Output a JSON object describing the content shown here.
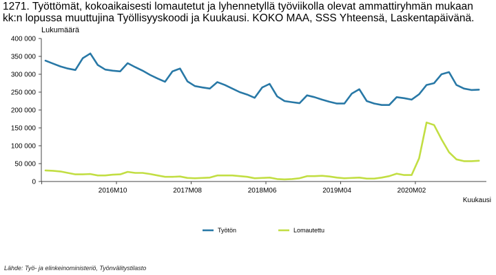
{
  "title": "1271. Työttömät, kokoaikaisesti lomautetut ja lyhennetyllä työviikolla olevat ammattiryhmän mukaan kk:n lopussa muuttujina Työllisyyskoodi ja Kuukausi. KOKO MAA, SSS Yhteensä, Laskentapäivänä.",
  "overlay_label": "Lukumäärä",
  "source": "Lähde: Työ- ja elinkeinoministeriö, Työnvälitystilasto",
  "colors": {
    "series1": "#2878a6",
    "series2": "#c2de43",
    "axis": "#444444"
  },
  "chart_data": {
    "type": "line",
    "title": "1271. Työttömät, kokoaikaisesti lomautetut ja lyhennetyllä työviikolla olevat ammattiryhmän mukaan kk:n lopussa muuttujina Työllisyyskoodi ja Kuukausi. KOKO MAA, SSS Yhteensä, Laskentapäivänä.",
    "xlabel": "Kuukausi",
    "ylabel": "Lukumäärä",
    "ylim": [
      0,
      400000
    ],
    "y_ticks": [
      0,
      50000,
      100000,
      150000,
      200000,
      250000,
      300000,
      350000,
      400000
    ],
    "y_tick_labels": [
      "0",
      "50 000",
      "100 000",
      "150 000",
      "200 000",
      "250 000",
      "300 000",
      "350 000",
      "400 000"
    ],
    "x_tick_labels": [
      {
        "label": "2016M10",
        "index": 9
      },
      {
        "label": "2017M08",
        "index": 19
      },
      {
        "label": "2018M06",
        "index": 29
      },
      {
        "label": "2019M04",
        "index": 39
      },
      {
        "label": "2020M02",
        "index": 49
      }
    ],
    "legend": {
      "position": "bottom-center",
      "entries": [
        "Työtön",
        "Lomautettu"
      ]
    },
    "grid": false,
    "series": [
      {
        "name": "Työtön",
        "color": "#2878a6",
        "values": [
          338000,
          330000,
          322000,
          316000,
          312000,
          345000,
          358000,
          326000,
          313000,
          310000,
          308000,
          331000,
          320000,
          310000,
          298000,
          288000,
          279000,
          308000,
          316000,
          280000,
          267000,
          263000,
          260000,
          278000,
          270000,
          260000,
          250000,
          243000,
          234000,
          263000,
          273000,
          238000,
          225000,
          222000,
          219000,
          241000,
          236000,
          229000,
          223000,
          218000,
          218000,
          246000,
          258000,
          225000,
          218000,
          214000,
          214000,
          236000,
          233000,
          229000,
          244000,
          270000,
          275000,
          300000,
          306000,
          270000,
          260000,
          256000,
          257000
        ]
      },
      {
        "name": "Lomautettu",
        "color": "#c2de43",
        "values": [
          31000,
          30000,
          28000,
          24000,
          20000,
          20000,
          21000,
          17000,
          17000,
          19000,
          20000,
          27000,
          24000,
          24000,
          21000,
          17000,
          13000,
          13000,
          14000,
          10000,
          9000,
          10000,
          11000,
          17000,
          17000,
          17000,
          15000,
          13000,
          9000,
          10000,
          11000,
          7000,
          6000,
          7000,
          9000,
          15000,
          15000,
          16000,
          14000,
          11000,
          9000,
          10000,
          11000,
          8000,
          8000,
          11000,
          15000,
          22000,
          18000,
          18000,
          65000,
          165000,
          158000,
          118000,
          82000,
          62000,
          57000,
          57000,
          58000
        ]
      }
    ]
  }
}
